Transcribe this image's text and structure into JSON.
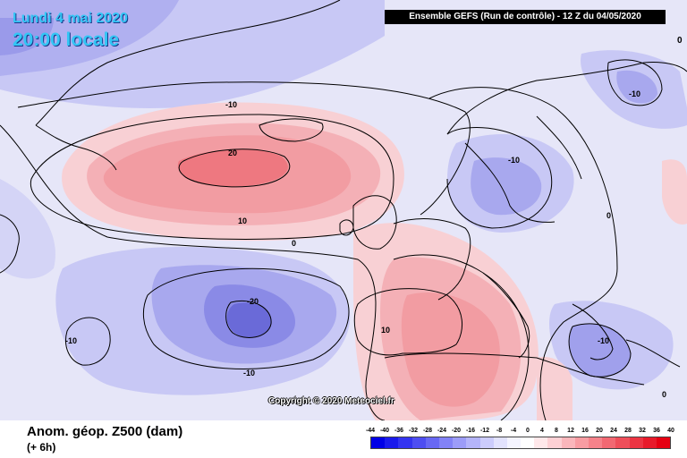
{
  "header": {
    "date_line": "Lundi 4 mai 2020",
    "time_line": "20:00 locale",
    "run_title": "Ensemble GEFS  (Run de contrôle)  -  12 Z du 04/05/2020",
    "corner_value": "0"
  },
  "map": {
    "contour_labels": [
      {
        "id": "greenland-10",
        "text": "-10"
      },
      {
        "id": "atlantic-high-20",
        "text": "20"
      },
      {
        "id": "atlantic-high-10",
        "text": "10"
      },
      {
        "id": "mid-atlantic-0",
        "text": "0"
      },
      {
        "id": "atlantic-low-20",
        "text": "-20"
      },
      {
        "id": "atlantic-low-10a",
        "text": "-10"
      },
      {
        "id": "atlantic-low-10b",
        "text": "-10"
      },
      {
        "id": "iberia-10",
        "text": "10"
      },
      {
        "id": "scandinavia-10",
        "text": "-10"
      },
      {
        "id": "finland-10",
        "text": "-10"
      },
      {
        "id": "russia-0",
        "text": "0"
      },
      {
        "id": "greece-10",
        "text": "-10"
      },
      {
        "id": "east-0",
        "text": "0"
      }
    ],
    "colors": {
      "ocean_neutral": "#e8e8fa",
      "neg_light": "#c8c8f5",
      "neg_mid": "#a8a8ee",
      "neg_strong": "#7878e0",
      "pos_light": "#f8d0d4",
      "pos_mid": "#f4a8ae",
      "pos_strong": "#ee7880",
      "coast": "#000000"
    }
  },
  "copyright": "Copyright © 2020 Meteociel.fr",
  "footer": {
    "variable": "Anom. géop. Z500 (dam)",
    "step": "(+ 6h)"
  },
  "legend": {
    "ticks": [
      "-44",
      "-40",
      "-36",
      "-32",
      "-28",
      "-24",
      "-20",
      "-16",
      "-12",
      "-8",
      "-4",
      "0",
      "4",
      "8",
      "12",
      "16",
      "20",
      "24",
      "28",
      "32",
      "36",
      "40"
    ],
    "colors": [
      "#0000e6",
      "#1a1aec",
      "#3434f0",
      "#4e4ef2",
      "#6868f4",
      "#8282f6",
      "#9c9cf8",
      "#b4b4fa",
      "#ccccfc",
      "#e2e2fd",
      "#f4f4ff",
      "#ffffff",
      "#ffe8ea",
      "#fdd0d4",
      "#fab6bb",
      "#f89ca2",
      "#f5828a",
      "#f26872",
      "#ef4e5a",
      "#ec3442",
      "#e81a2a",
      "#e60012"
    ]
  }
}
